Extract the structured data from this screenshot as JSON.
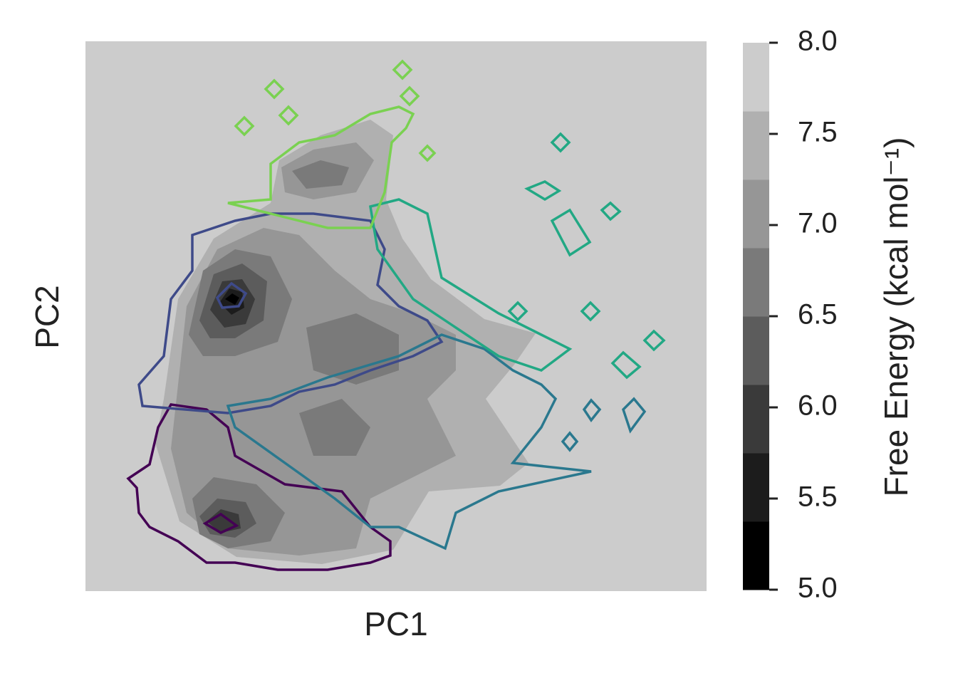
{
  "chart_data": {
    "type": "contour",
    "xlabel": "PC1",
    "ylabel": "PC2",
    "colorbar": {
      "label": "Free Energy (kcal mol⁻¹)",
      "lim": [
        5,
        8
      ],
      "ticks": [
        {
          "value": 5,
          "label": "5.0"
        },
        {
          "value": 5.5,
          "label": "5.5"
        },
        {
          "value": 6,
          "label": "6.0"
        },
        {
          "value": 6.5,
          "label": "6.5"
        },
        {
          "value": 7,
          "label": "7.0"
        },
        {
          "value": 7.5,
          "label": "7.5"
        },
        {
          "value": 8,
          "label": "8.0"
        }
      ],
      "levels": [
        5,
        5.375,
        5.75,
        6.125,
        6.5,
        6.875,
        7.25,
        7.625,
        8
      ],
      "colors": [
        "#000000",
        "#1c1c1c",
        "#3a3a3a",
        "#5c5c5c",
        "#7a7a7a",
        "#969696",
        "#b0b0b0",
        "#cccccc"
      ]
    },
    "cluster_colors": [
      "#440154",
      "#3e4a89",
      "#2a788e",
      "#22a884",
      "#7ad151"
    ]
  }
}
